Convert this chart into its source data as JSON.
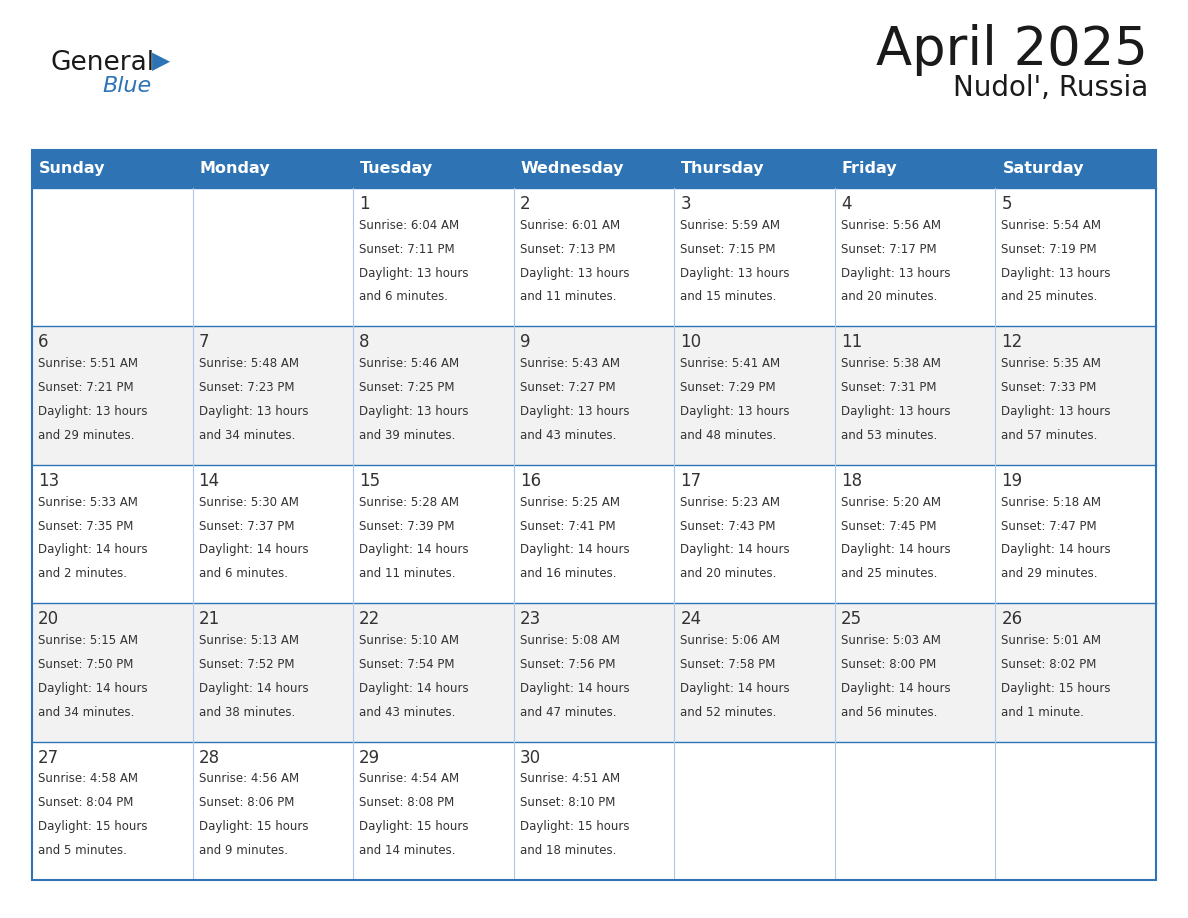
{
  "title": "April 2025",
  "subtitle": "Nudol', Russia",
  "header_bg": "#2e74b5",
  "header_text": "#ffffff",
  "row_bg_odd": "#f2f2f2",
  "row_bg_even": "#ffffff",
  "border_color": "#2e74b5",
  "sep_color": "#aec6e8",
  "text_color": "#333333",
  "day_headers": [
    "Sunday",
    "Monday",
    "Tuesday",
    "Wednesday",
    "Thursday",
    "Friday",
    "Saturday"
  ],
  "days": [
    {
      "day": "",
      "col": 0,
      "row": 0,
      "sunrise": "",
      "sunset": "",
      "daylight": ""
    },
    {
      "day": "",
      "col": 1,
      "row": 0,
      "sunrise": "",
      "sunset": "",
      "daylight": ""
    },
    {
      "day": "1",
      "col": 2,
      "row": 0,
      "sunrise": "Sunrise: 6:04 AM",
      "sunset": "Sunset: 7:11 PM",
      "daylight": "Daylight: 13 hours\nand 6 minutes."
    },
    {
      "day": "2",
      "col": 3,
      "row": 0,
      "sunrise": "Sunrise: 6:01 AM",
      "sunset": "Sunset: 7:13 PM",
      "daylight": "Daylight: 13 hours\nand 11 minutes."
    },
    {
      "day": "3",
      "col": 4,
      "row": 0,
      "sunrise": "Sunrise: 5:59 AM",
      "sunset": "Sunset: 7:15 PM",
      "daylight": "Daylight: 13 hours\nand 15 minutes."
    },
    {
      "day": "4",
      "col": 5,
      "row": 0,
      "sunrise": "Sunrise: 5:56 AM",
      "sunset": "Sunset: 7:17 PM",
      "daylight": "Daylight: 13 hours\nand 20 minutes."
    },
    {
      "day": "5",
      "col": 6,
      "row": 0,
      "sunrise": "Sunrise: 5:54 AM",
      "sunset": "Sunset: 7:19 PM",
      "daylight": "Daylight: 13 hours\nand 25 minutes."
    },
    {
      "day": "6",
      "col": 0,
      "row": 1,
      "sunrise": "Sunrise: 5:51 AM",
      "sunset": "Sunset: 7:21 PM",
      "daylight": "Daylight: 13 hours\nand 29 minutes."
    },
    {
      "day": "7",
      "col": 1,
      "row": 1,
      "sunrise": "Sunrise: 5:48 AM",
      "sunset": "Sunset: 7:23 PM",
      "daylight": "Daylight: 13 hours\nand 34 minutes."
    },
    {
      "day": "8",
      "col": 2,
      "row": 1,
      "sunrise": "Sunrise: 5:46 AM",
      "sunset": "Sunset: 7:25 PM",
      "daylight": "Daylight: 13 hours\nand 39 minutes."
    },
    {
      "day": "9",
      "col": 3,
      "row": 1,
      "sunrise": "Sunrise: 5:43 AM",
      "sunset": "Sunset: 7:27 PM",
      "daylight": "Daylight: 13 hours\nand 43 minutes."
    },
    {
      "day": "10",
      "col": 4,
      "row": 1,
      "sunrise": "Sunrise: 5:41 AM",
      "sunset": "Sunset: 7:29 PM",
      "daylight": "Daylight: 13 hours\nand 48 minutes."
    },
    {
      "day": "11",
      "col": 5,
      "row": 1,
      "sunrise": "Sunrise: 5:38 AM",
      "sunset": "Sunset: 7:31 PM",
      "daylight": "Daylight: 13 hours\nand 53 minutes."
    },
    {
      "day": "12",
      "col": 6,
      "row": 1,
      "sunrise": "Sunrise: 5:35 AM",
      "sunset": "Sunset: 7:33 PM",
      "daylight": "Daylight: 13 hours\nand 57 minutes."
    },
    {
      "day": "13",
      "col": 0,
      "row": 2,
      "sunrise": "Sunrise: 5:33 AM",
      "sunset": "Sunset: 7:35 PM",
      "daylight": "Daylight: 14 hours\nand 2 minutes."
    },
    {
      "day": "14",
      "col": 1,
      "row": 2,
      "sunrise": "Sunrise: 5:30 AM",
      "sunset": "Sunset: 7:37 PM",
      "daylight": "Daylight: 14 hours\nand 6 minutes."
    },
    {
      "day": "15",
      "col": 2,
      "row": 2,
      "sunrise": "Sunrise: 5:28 AM",
      "sunset": "Sunset: 7:39 PM",
      "daylight": "Daylight: 14 hours\nand 11 minutes."
    },
    {
      "day": "16",
      "col": 3,
      "row": 2,
      "sunrise": "Sunrise: 5:25 AM",
      "sunset": "Sunset: 7:41 PM",
      "daylight": "Daylight: 14 hours\nand 16 minutes."
    },
    {
      "day": "17",
      "col": 4,
      "row": 2,
      "sunrise": "Sunrise: 5:23 AM",
      "sunset": "Sunset: 7:43 PM",
      "daylight": "Daylight: 14 hours\nand 20 minutes."
    },
    {
      "day": "18",
      "col": 5,
      "row": 2,
      "sunrise": "Sunrise: 5:20 AM",
      "sunset": "Sunset: 7:45 PM",
      "daylight": "Daylight: 14 hours\nand 25 minutes."
    },
    {
      "day": "19",
      "col": 6,
      "row": 2,
      "sunrise": "Sunrise: 5:18 AM",
      "sunset": "Sunset: 7:47 PM",
      "daylight": "Daylight: 14 hours\nand 29 minutes."
    },
    {
      "day": "20",
      "col": 0,
      "row": 3,
      "sunrise": "Sunrise: 5:15 AM",
      "sunset": "Sunset: 7:50 PM",
      "daylight": "Daylight: 14 hours\nand 34 minutes."
    },
    {
      "day": "21",
      "col": 1,
      "row": 3,
      "sunrise": "Sunrise: 5:13 AM",
      "sunset": "Sunset: 7:52 PM",
      "daylight": "Daylight: 14 hours\nand 38 minutes."
    },
    {
      "day": "22",
      "col": 2,
      "row": 3,
      "sunrise": "Sunrise: 5:10 AM",
      "sunset": "Sunset: 7:54 PM",
      "daylight": "Daylight: 14 hours\nand 43 minutes."
    },
    {
      "day": "23",
      "col": 3,
      "row": 3,
      "sunrise": "Sunrise: 5:08 AM",
      "sunset": "Sunset: 7:56 PM",
      "daylight": "Daylight: 14 hours\nand 47 minutes."
    },
    {
      "day": "24",
      "col": 4,
      "row": 3,
      "sunrise": "Sunrise: 5:06 AM",
      "sunset": "Sunset: 7:58 PM",
      "daylight": "Daylight: 14 hours\nand 52 minutes."
    },
    {
      "day": "25",
      "col": 5,
      "row": 3,
      "sunrise": "Sunrise: 5:03 AM",
      "sunset": "Sunset: 8:00 PM",
      "daylight": "Daylight: 14 hours\nand 56 minutes."
    },
    {
      "day": "26",
      "col": 6,
      "row": 3,
      "sunrise": "Sunrise: 5:01 AM",
      "sunset": "Sunset: 8:02 PM",
      "daylight": "Daylight: 15 hours\nand 1 minute."
    },
    {
      "day": "27",
      "col": 0,
      "row": 4,
      "sunrise": "Sunrise: 4:58 AM",
      "sunset": "Sunset: 8:04 PM",
      "daylight": "Daylight: 15 hours\nand 5 minutes."
    },
    {
      "day": "28",
      "col": 1,
      "row": 4,
      "sunrise": "Sunrise: 4:56 AM",
      "sunset": "Sunset: 8:06 PM",
      "daylight": "Daylight: 15 hours\nand 9 minutes."
    },
    {
      "day": "29",
      "col": 2,
      "row": 4,
      "sunrise": "Sunrise: 4:54 AM",
      "sunset": "Sunset: 8:08 PM",
      "daylight": "Daylight: 15 hours\nand 14 minutes."
    },
    {
      "day": "30",
      "col": 3,
      "row": 4,
      "sunrise": "Sunrise: 4:51 AM",
      "sunset": "Sunset: 8:10 PM",
      "daylight": "Daylight: 15 hours\nand 18 minutes."
    },
    {
      "day": "",
      "col": 4,
      "row": 4,
      "sunrise": "",
      "sunset": "",
      "daylight": ""
    },
    {
      "day": "",
      "col": 5,
      "row": 4,
      "sunrise": "",
      "sunset": "",
      "daylight": ""
    },
    {
      "day": "",
      "col": 6,
      "row": 4,
      "sunrise": "",
      "sunset": "",
      "daylight": ""
    }
  ]
}
